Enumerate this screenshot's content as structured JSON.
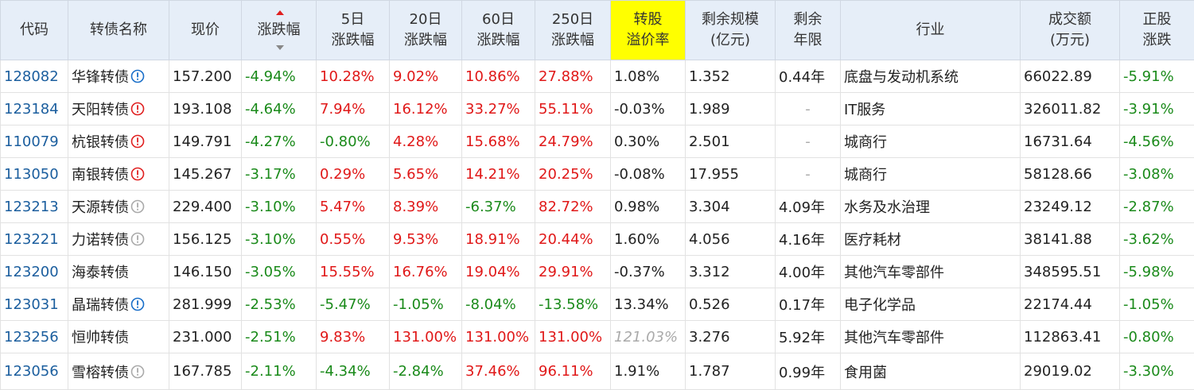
{
  "table": {
    "header": [
      [
        "代码"
      ],
      [
        "转债名称"
      ],
      [
        "现价"
      ],
      [
        "涨跌幅"
      ],
      [
        "5日",
        "涨跌幅"
      ],
      [
        "20日",
        "涨跌幅"
      ],
      [
        "60日",
        "涨跌幅"
      ],
      [
        "250日",
        "涨跌幅"
      ],
      [
        "转股",
        "溢价率"
      ],
      [
        "剩余规模",
        "(亿元)"
      ],
      [
        "剩余",
        "年限"
      ],
      [
        "行业"
      ],
      [
        "成交额",
        "(万元)"
      ],
      [
        "正股",
        "涨跌"
      ]
    ],
    "highlight_column": 8,
    "sort_column": 3,
    "rows": [
      {
        "icon": "#1a6fc9",
        "cells": [
          "128082",
          "华锋转债",
          "157.200",
          "-4.94%",
          "10.28%",
          "9.02%",
          "10.86%",
          "27.88%",
          "1.08%",
          "1.352",
          "0.44年",
          "底盘与发动机系统",
          "66022.89",
          "-5.91%"
        ]
      },
      {
        "icon": "#e02020",
        "cells": [
          "123184",
          "天阳转债",
          "193.108",
          "-4.64%",
          "7.94%",
          "16.12%",
          "33.27%",
          "55.11%",
          "-0.03%",
          "1.989",
          "-",
          "IT服务",
          "326011.82",
          "-3.91%"
        ]
      },
      {
        "icon": "#e02020",
        "cells": [
          "110079",
          "杭银转债",
          "149.791",
          "-4.27%",
          "-0.80%",
          "4.28%",
          "15.68%",
          "24.79%",
          "0.30%",
          "2.501",
          "-",
          "城商行",
          "16731.64",
          "-4.56%"
        ]
      },
      {
        "icon": "#e02020",
        "cells": [
          "113050",
          "南银转债",
          "145.267",
          "-3.17%",
          "0.29%",
          "5.65%",
          "14.21%",
          "20.25%",
          "-0.08%",
          "17.955",
          "-",
          "城商行",
          "58128.66",
          "-3.08%"
        ]
      },
      {
        "icon": "#aaaaaa",
        "cells": [
          "123213",
          "天源转债",
          "229.400",
          "-3.10%",
          "5.47%",
          "8.39%",
          "-6.37%",
          "82.72%",
          "0.98%",
          "3.304",
          "4.09年",
          "水务及水治理",
          "23249.12",
          "-2.87%"
        ]
      },
      {
        "icon": "#aaaaaa",
        "cells": [
          "123221",
          "力诺转债",
          "156.125",
          "-3.10%",
          "0.55%",
          "9.53%",
          "18.91%",
          "20.44%",
          "1.60%",
          "4.056",
          "4.16年",
          "医疗耗材",
          "38141.88",
          "-3.62%"
        ]
      },
      {
        "icon": null,
        "cells": [
          "123200",
          "海泰转债",
          "146.150",
          "-3.05%",
          "15.55%",
          "16.76%",
          "19.04%",
          "29.91%",
          "-0.37%",
          "3.312",
          "4.00年",
          "其他汽车零部件",
          "348595.51",
          "-5.98%"
        ]
      },
      {
        "icon": "#1a6fc9",
        "cells": [
          "123031",
          "晶瑞转债",
          "281.999",
          "-2.53%",
          "-5.47%",
          "-1.05%",
          "-8.04%",
          "-13.58%",
          "13.34%",
          "0.526",
          "0.17年",
          "电子化学品",
          "22174.44",
          "-1.05%"
        ]
      },
      {
        "icon": null,
        "muted": [
          8
        ],
        "cells": [
          "123256",
          "恒帅转债",
          "231.000",
          "-2.51%",
          "9.83%",
          "131.00%",
          "131.00%",
          "131.00%",
          "121.03%",
          "3.276",
          "5.92年",
          "其他汽车零部件",
          "112863.41",
          "-0.80%"
        ]
      },
      {
        "icon": "#aaaaaa",
        "cells": [
          "123056",
          "雪榕转债",
          "167.785",
          "-2.11%",
          "-4.34%",
          "-2.84%",
          "37.46%",
          "96.11%",
          "1.91%",
          "1.787",
          "0.99年",
          "食用菌",
          "29019.02",
          "-3.30%"
        ]
      }
    ]
  }
}
